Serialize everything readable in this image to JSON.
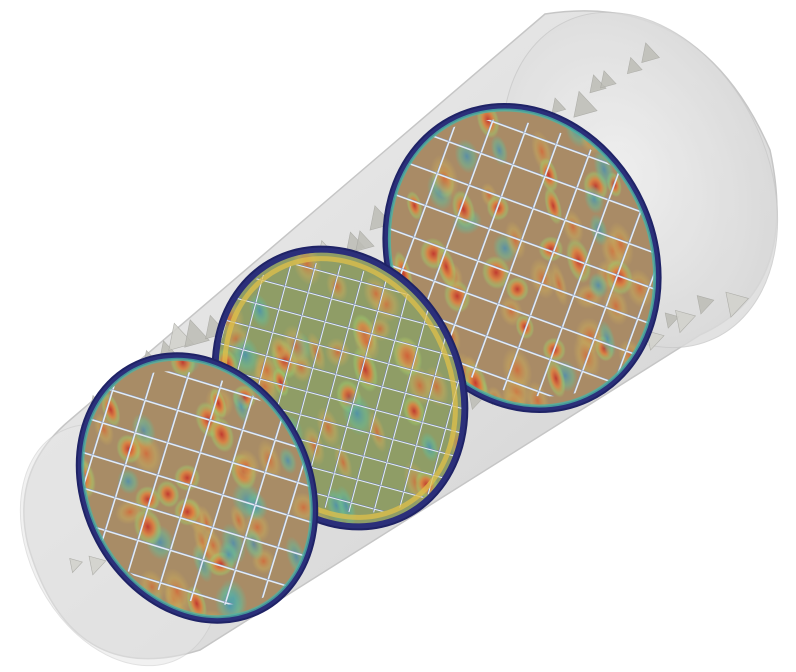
{
  "scene": {
    "subject": "cfd-cylinder-with-lattice-cross-sections",
    "colors": {
      "background": "#ffffff",
      "cylinder_fill": "#dcdcdc",
      "cylinder_edge": "#c4c4c4",
      "fins": "#cfcfc9",
      "fins_shadow": "#9e9e98",
      "ring_dark": "#2b2f7a",
      "ring_mid": "#3d4aa8",
      "lattice": "#d8e6f2",
      "field_low": "#2d5fb0",
      "field_midlow": "#4bb3a4",
      "field_mid": "#9fcf6a",
      "field_high": "#e2b25a",
      "field_peak": "#c2362d",
      "base_tan": "#b8956a"
    },
    "slices": [
      {
        "id": "left",
        "tint": "#a88c66"
      },
      {
        "id": "middle",
        "tint": "#93a06a"
      },
      {
        "id": "right",
        "tint": "#b08d68"
      }
    ]
  }
}
